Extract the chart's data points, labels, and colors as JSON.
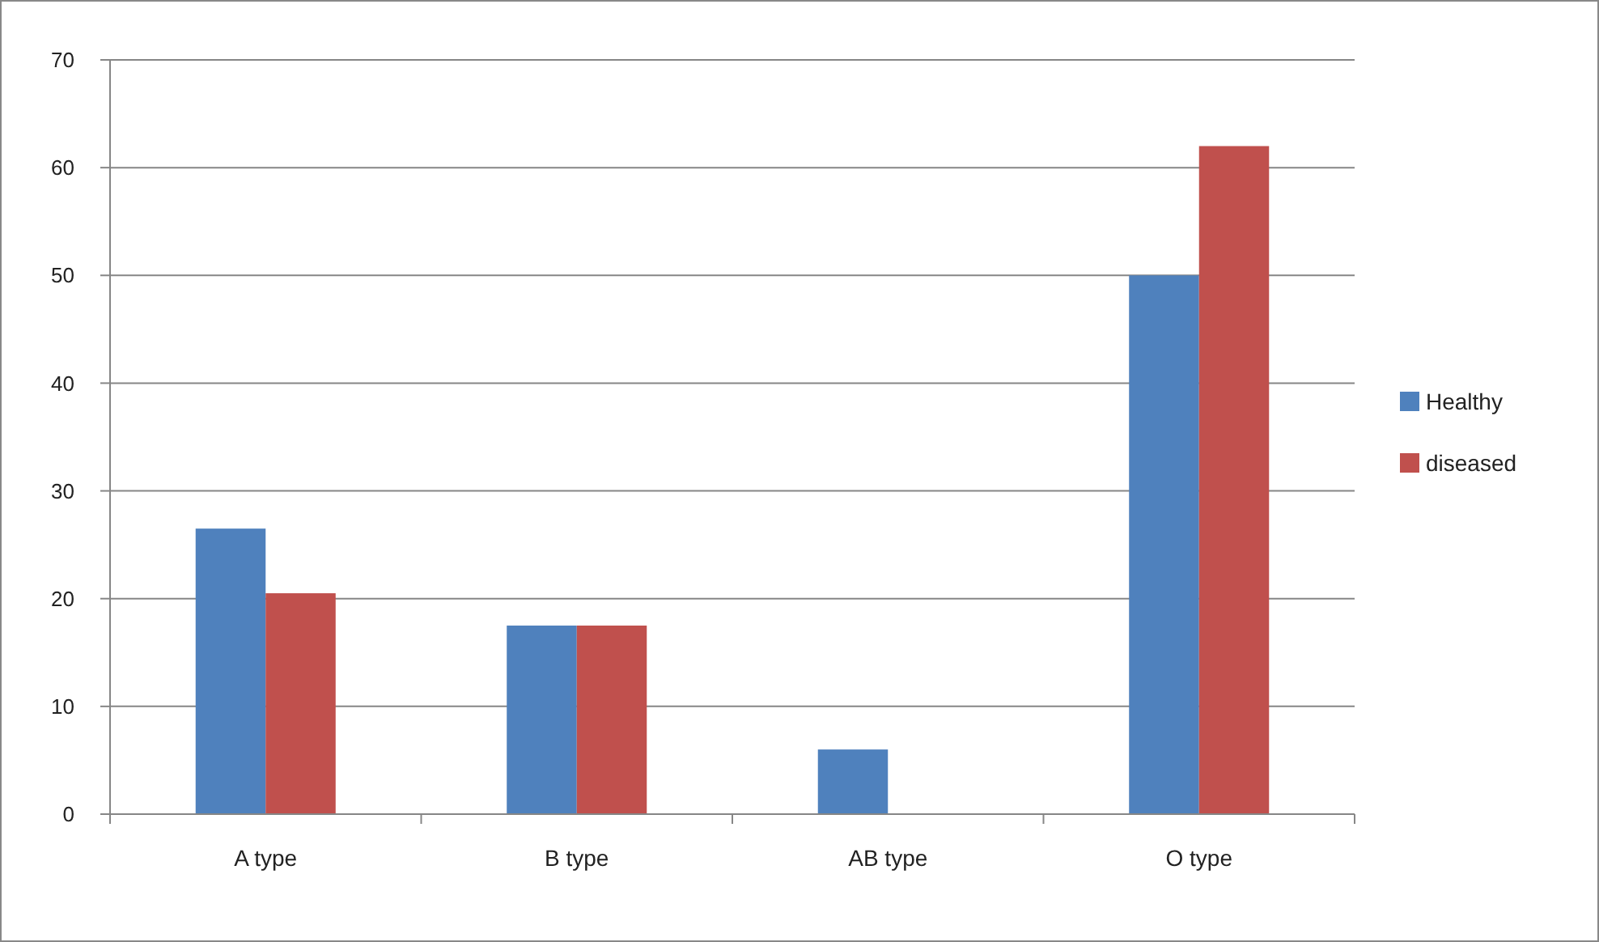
{
  "chart_data": {
    "type": "bar",
    "categories": [
      "A type",
      "B type",
      "AB type",
      "O type"
    ],
    "series": [
      {
        "name": "Healthy",
        "color": "#4f81bd",
        "values": [
          26.5,
          17.5,
          6,
          50
        ]
      },
      {
        "name": "diseased",
        "color": "#c0504d",
        "values": [
          20.5,
          17.5,
          0,
          62
        ]
      }
    ],
    "ylim": [
      0,
      70
    ],
    "yticks": [
      0,
      10,
      20,
      30,
      40,
      50,
      60,
      70
    ],
    "grid": "y",
    "legend": "right"
  }
}
